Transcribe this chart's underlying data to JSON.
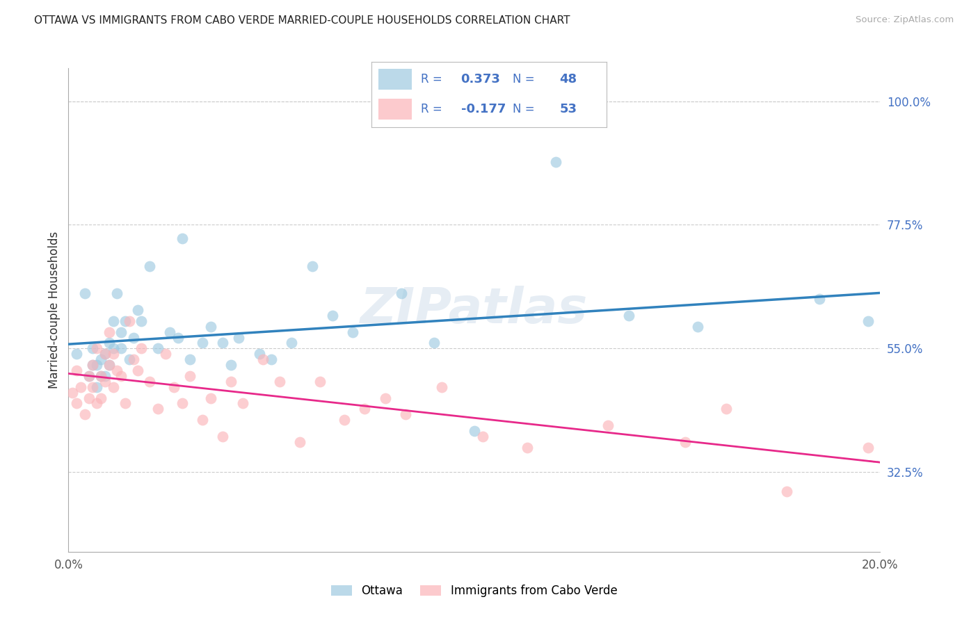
{
  "title": "OTTAWA VS IMMIGRANTS FROM CABO VERDE MARRIED-COUPLE HOUSEHOLDS CORRELATION CHART",
  "source": "Source: ZipAtlas.com",
  "ylabel": "Married-couple Households",
  "series1_label": "Ottawa",
  "series2_label": "Immigrants from Cabo Verde",
  "series1_R": "0.373",
  "series1_N": "48",
  "series2_R": "-0.177",
  "series2_N": "53",
  "xlim": [
    0.0,
    0.2
  ],
  "ylim": [
    0.18,
    1.06
  ],
  "right_yticks": [
    0.325,
    0.55,
    0.775,
    1.0
  ],
  "right_yticklabels": [
    "32.5%",
    "55.0%",
    "77.5%",
    "100.0%"
  ],
  "xticks": [
    0.0,
    0.04,
    0.08,
    0.12,
    0.16,
    0.2
  ],
  "xticklabels": [
    "0.0%",
    "",
    "",
    "",
    "",
    "20.0%"
  ],
  "color_blue": "#9ecae1",
  "color_pink": "#fbb4b9",
  "line_blue": "#3182bd",
  "line_pink": "#e7298a",
  "text_blue": "#4472c4",
  "background_color": "#ffffff",
  "watermark": "ZIPatlas",
  "series1_x": [
    0.002,
    0.004,
    0.005,
    0.006,
    0.006,
    0.007,
    0.007,
    0.008,
    0.008,
    0.009,
    0.009,
    0.01,
    0.01,
    0.011,
    0.011,
    0.012,
    0.013,
    0.013,
    0.014,
    0.015,
    0.016,
    0.017,
    0.018,
    0.02,
    0.022,
    0.025,
    0.027,
    0.028,
    0.03,
    0.033,
    0.035,
    0.038,
    0.04,
    0.042,
    0.047,
    0.05,
    0.055,
    0.06,
    0.065,
    0.07,
    0.082,
    0.09,
    0.1,
    0.12,
    0.138,
    0.155,
    0.185,
    0.197
  ],
  "series1_y": [
    0.54,
    0.65,
    0.5,
    0.52,
    0.55,
    0.48,
    0.52,
    0.5,
    0.53,
    0.5,
    0.54,
    0.56,
    0.52,
    0.6,
    0.55,
    0.65,
    0.58,
    0.55,
    0.6,
    0.53,
    0.57,
    0.62,
    0.6,
    0.7,
    0.55,
    0.58,
    0.57,
    0.75,
    0.53,
    0.56,
    0.59,
    0.56,
    0.52,
    0.57,
    0.54,
    0.53,
    0.56,
    0.7,
    0.61,
    0.58,
    0.65,
    0.56,
    0.4,
    0.89,
    0.61,
    0.59,
    0.64,
    0.6
  ],
  "series2_x": [
    0.001,
    0.002,
    0.002,
    0.003,
    0.004,
    0.005,
    0.005,
    0.006,
    0.006,
    0.007,
    0.007,
    0.008,
    0.008,
    0.009,
    0.009,
    0.01,
    0.01,
    0.011,
    0.011,
    0.012,
    0.013,
    0.014,
    0.015,
    0.016,
    0.017,
    0.018,
    0.02,
    0.022,
    0.024,
    0.026,
    0.028,
    0.03,
    0.033,
    0.035,
    0.038,
    0.04,
    0.043,
    0.048,
    0.052,
    0.057,
    0.062,
    0.068,
    0.073,
    0.078,
    0.083,
    0.092,
    0.102,
    0.113,
    0.133,
    0.152,
    0.162,
    0.177,
    0.197
  ],
  "series2_y": [
    0.47,
    0.45,
    0.51,
    0.48,
    0.43,
    0.5,
    0.46,
    0.52,
    0.48,
    0.45,
    0.55,
    0.5,
    0.46,
    0.54,
    0.49,
    0.58,
    0.52,
    0.48,
    0.54,
    0.51,
    0.5,
    0.45,
    0.6,
    0.53,
    0.51,
    0.55,
    0.49,
    0.44,
    0.54,
    0.48,
    0.45,
    0.5,
    0.42,
    0.46,
    0.39,
    0.49,
    0.45,
    0.53,
    0.49,
    0.38,
    0.49,
    0.42,
    0.44,
    0.46,
    0.43,
    0.48,
    0.39,
    0.37,
    0.41,
    0.38,
    0.44,
    0.29,
    0.37
  ]
}
